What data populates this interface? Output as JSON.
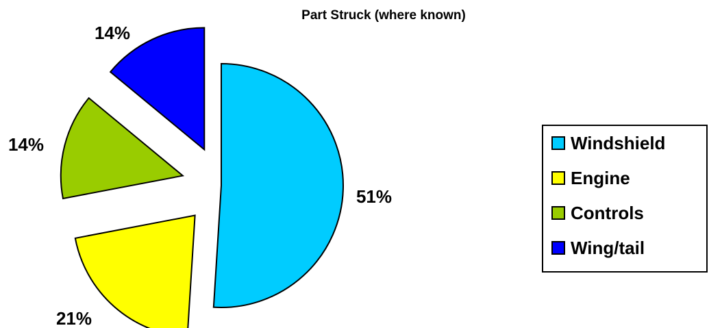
{
  "chart_data": {
    "type": "pie",
    "title": "Part Struck (where known)",
    "slices": [
      {
        "label": "Windshield",
        "value": 51,
        "value_label": "51%",
        "color": "#00ccff",
        "exploded": false
      },
      {
        "label": "Engine",
        "value": 21,
        "value_label": "21%",
        "color": "#ffff00",
        "exploded": true
      },
      {
        "label": "Controls",
        "value": 14,
        "value_label": "14%",
        "color": "#99cc00",
        "exploded": true
      },
      {
        "label": "Wing/tail",
        "value": 14,
        "value_label": "14%",
        "color": "#0000ff",
        "exploded": true
      }
    ],
    "legend_position": "right"
  }
}
